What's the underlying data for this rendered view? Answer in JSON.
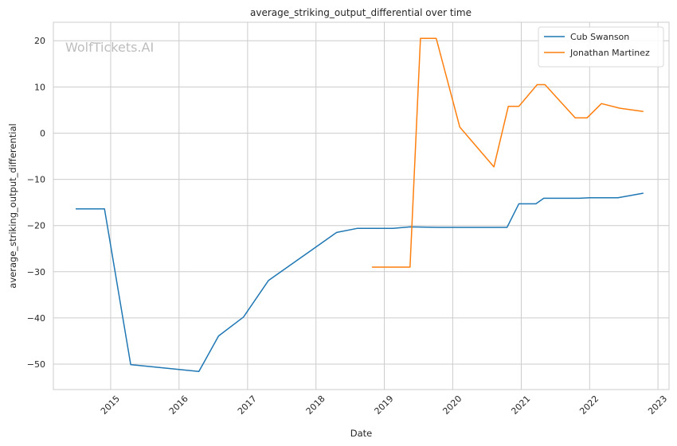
{
  "chart_data": {
    "type": "line",
    "title": "average_striking_output_differential over time",
    "xlabel": "Date",
    "ylabel": "average_striking_output_differential",
    "watermark": "WolfTickets.AI",
    "xlim": [
      "2014-03-01",
      "2023-03-01"
    ],
    "ylim": [
      -55.5,
      24
    ],
    "x_ticks": [
      "2015",
      "2016",
      "2017",
      "2018",
      "2019",
      "2020",
      "2021",
      "2022",
      "2023"
    ],
    "y_ticks": [
      20,
      10,
      0,
      -10,
      -20,
      -30,
      -40,
      -50
    ],
    "grid": true,
    "legend_position": "top-right",
    "series": [
      {
        "name": "Cub Swanson",
        "color": "#1f77b4",
        "points": [
          [
            "2014-06-28",
            -16.4
          ],
          [
            "2014-11-29",
            -16.4
          ],
          [
            "2015-04-18",
            -50.1
          ],
          [
            "2016-04-16",
            -51.6
          ],
          [
            "2016-07-30",
            -43.9
          ],
          [
            "2016-12-10",
            -39.8
          ],
          [
            "2017-04-22",
            -31.9
          ],
          [
            "2018-04-21",
            -21.5
          ],
          [
            "2018-08-11",
            -20.6
          ],
          [
            "2019-02-16",
            -20.6
          ],
          [
            "2019-05-18",
            -20.3
          ],
          [
            "2019-10-12",
            -20.4
          ],
          [
            "2020-10-17",
            -20.4
          ],
          [
            "2020-12-19",
            -15.3
          ],
          [
            "2021-03-20",
            -15.3
          ],
          [
            "2021-05-01",
            -14.1
          ],
          [
            "2021-11-06",
            -14.1
          ],
          [
            "2021-12-31",
            -14.0
          ],
          [
            "2022-06-01",
            -14.0
          ],
          [
            "2022-10-15",
            -13.0
          ]
        ]
      },
      {
        "name": "Jonathan Martinez",
        "color": "#ff7f0e",
        "points": [
          [
            "2018-10-27",
            -29.0
          ],
          [
            "2019-05-18",
            -29.0
          ],
          [
            "2019-07-13",
            20.5
          ],
          [
            "2019-10-05",
            20.5
          ],
          [
            "2020-02-08",
            1.3
          ],
          [
            "2020-08-08",
            -7.3
          ],
          [
            "2020-10-24",
            5.8
          ],
          [
            "2020-12-19",
            5.8
          ],
          [
            "2021-03-27",
            10.5
          ],
          [
            "2021-05-08",
            10.5
          ],
          [
            "2021-10-16",
            3.3
          ],
          [
            "2021-12-18",
            3.3
          ],
          [
            "2022-03-05",
            6.4
          ],
          [
            "2022-06-11",
            5.4
          ],
          [
            "2022-10-15",
            4.7
          ]
        ]
      }
    ]
  }
}
